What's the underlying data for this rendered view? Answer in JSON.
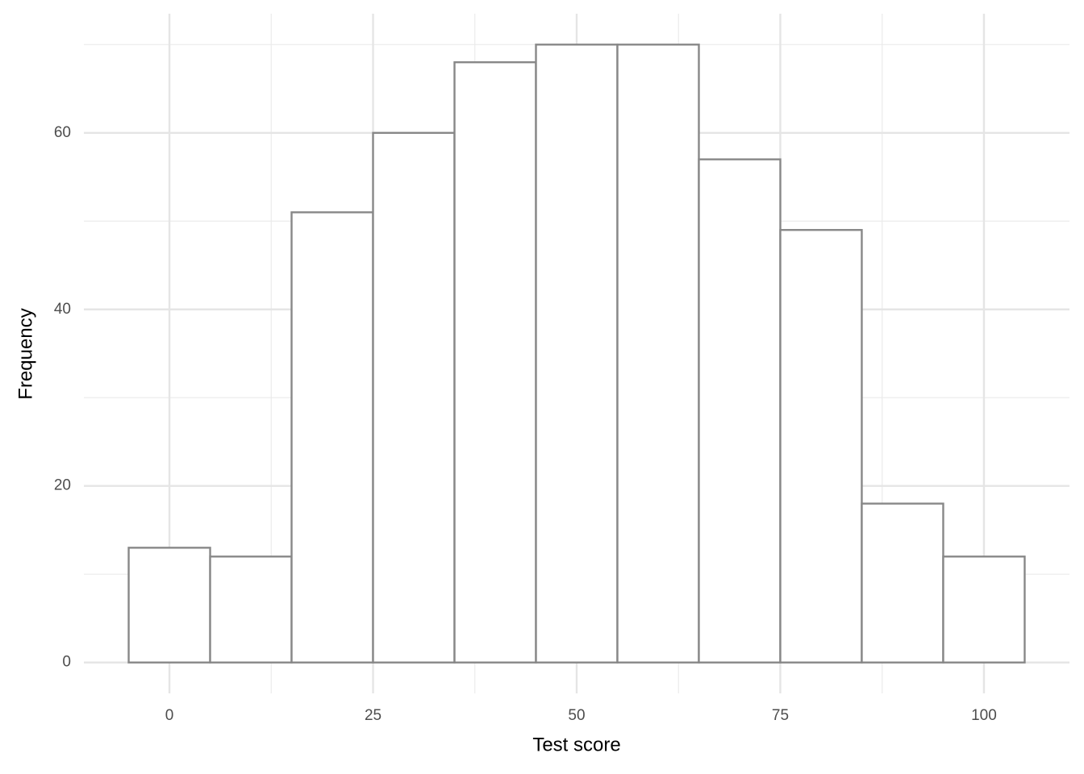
{
  "chart_data": {
    "type": "histogram",
    "x_label": "Test score",
    "y_label": "Frequency",
    "bins": [
      -5,
      5,
      15,
      25,
      35,
      45,
      55,
      65,
      75,
      85,
      95,
      105
    ],
    "values": [
      13,
      12,
      51,
      60,
      68,
      70,
      70,
      57,
      49,
      18,
      12
    ],
    "color": "#ffffff",
    "edge_color": "#888888",
    "xlim": [
      -10.5,
      110.5
    ],
    "ylim": [
      -3.5,
      73.5
    ],
    "xticks": [
      0,
      25,
      50,
      75,
      100
    ],
    "yticks": [
      0,
      20,
      40,
      60
    ],
    "x_minor_grid": [
      12.5,
      37.5,
      62.5,
      87.5
    ],
    "y_minor_grid": [
      10,
      30,
      50,
      70
    ],
    "grid": true
  }
}
